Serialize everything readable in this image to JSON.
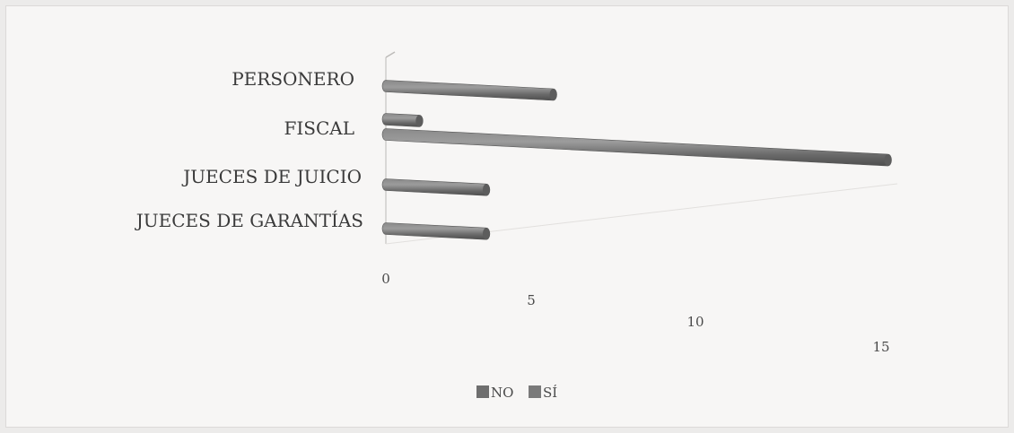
{
  "chart_data": {
    "type": "bar",
    "orientation": "horizontal-3d-cylinder",
    "categories": [
      "PERSONERO",
      "FISCAL",
      "JUECES DE JUICIO",
      "JUECES DE GARANTÍAS"
    ],
    "series": [
      {
        "name": "NO",
        "values": [
          0,
          1,
          0,
          0
        ],
        "color": "#6e6e6e"
      },
      {
        "name": "SÍ",
        "values": [
          5,
          15,
          3,
          3
        ],
        "color": "#7a7a7a"
      }
    ],
    "x_ticks": [
      "0",
      "5",
      "10",
      "15"
    ],
    "xlim": [
      0,
      15
    ],
    "grid": false,
    "legend": {
      "placement": "bottom",
      "entries": [
        "NO",
        "SÍ"
      ]
    }
  }
}
